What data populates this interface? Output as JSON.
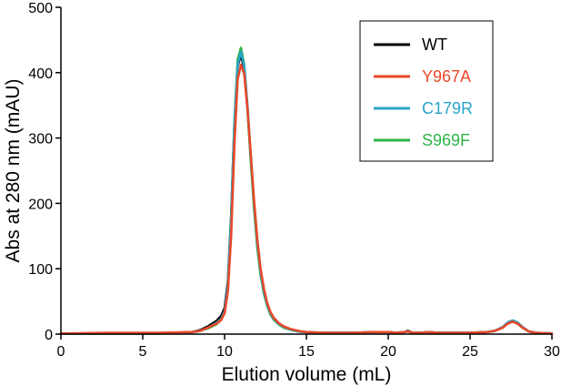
{
  "chart_data": {
    "type": "line",
    "xlabel": "Elution volume (mL)",
    "ylabel": "Abs at 280 nm (mAU)",
    "xlim": [
      0,
      30
    ],
    "ylim": [
      0,
      500
    ],
    "xticks": [
      0,
      5,
      10,
      15,
      20,
      25,
      30
    ],
    "yticks": [
      0,
      100,
      200,
      300,
      400,
      500
    ],
    "grid": false,
    "legend_position": "top-right",
    "series": [
      {
        "name": "WT",
        "color": "#000000",
        "x": [
          0,
          3,
          6,
          8,
          8.5,
          9,
          9.5,
          9.8,
          10,
          10.2,
          10.4,
          10.6,
          10.8,
          11.0,
          11.2,
          11.4,
          11.6,
          11.8,
          12.0,
          12.2,
          12.4,
          12.6,
          12.8,
          13.0,
          13.3,
          13.6,
          14.0,
          14.5,
          15,
          16,
          17,
          18,
          19,
          20,
          20.5,
          21,
          21.2,
          21.5,
          22,
          22.5,
          23,
          24,
          25,
          26,
          26.5,
          27,
          27.3,
          27.6,
          27.9,
          28.2,
          28.6,
          29,
          30
        ],
        "y": [
          1,
          1,
          1,
          3,
          6,
          12,
          20,
          28,
          40,
          80,
          180,
          320,
          410,
          428,
          405,
          345,
          270,
          200,
          140,
          95,
          65,
          45,
          32,
          24,
          16,
          11,
          7,
          4,
          3,
          2,
          2,
          2,
          3,
          3,
          2,
          3,
          5,
          2,
          2,
          3,
          2,
          2,
          2,
          3,
          5,
          10,
          17,
          20,
          17,
          10,
          4,
          2,
          1
        ]
      },
      {
        "name": "Y967A",
        "color": "#e8482a",
        "x": [
          0,
          3,
          6,
          8,
          8.5,
          9,
          9.5,
          9.8,
          10,
          10.2,
          10.4,
          10.6,
          10.8,
          11.0,
          11.2,
          11.4,
          11.6,
          11.8,
          12.0,
          12.2,
          12.4,
          12.6,
          12.8,
          13.0,
          13.3,
          13.6,
          14.0,
          14.5,
          15,
          16,
          17,
          18,
          19,
          20,
          20.5,
          21,
          21.2,
          21.5,
          22,
          22.5,
          23,
          24,
          25,
          26,
          26.5,
          27,
          27.3,
          27.6,
          27.9,
          28.2,
          28.6,
          29,
          30
        ],
        "y": [
          1,
          2,
          2,
          3,
          5,
          10,
          16,
          22,
          32,
          65,
          150,
          290,
          390,
          412,
          398,
          345,
          275,
          205,
          145,
          100,
          70,
          48,
          34,
          25,
          17,
          12,
          8,
          5,
          3,
          2,
          2,
          2,
          3,
          3,
          2,
          3,
          4,
          2,
          2,
          3,
          2,
          2,
          2,
          3,
          5,
          10,
          16,
          19,
          16,
          10,
          4,
          2,
          1
        ]
      },
      {
        "name": "C179R",
        "color": "#2aa4c9",
        "x": [
          0,
          3,
          6,
          8,
          8.5,
          9,
          9.5,
          9.8,
          10,
          10.2,
          10.4,
          10.6,
          10.8,
          11.0,
          11.2,
          11.4,
          11.6,
          11.8,
          12.0,
          12.2,
          12.4,
          12.6,
          12.8,
          13.0,
          13.3,
          13.6,
          14.0,
          14.5,
          15,
          16,
          17,
          18,
          19,
          20,
          20.5,
          21,
          21.2,
          21.5,
          22,
          22.5,
          23,
          24,
          25,
          26,
          26.5,
          27,
          27.3,
          27.6,
          27.9,
          28.2,
          28.6,
          29,
          30
        ],
        "y": [
          1,
          1,
          1,
          3,
          5,
          10,
          17,
          24,
          35,
          75,
          175,
          320,
          412,
          432,
          410,
          350,
          272,
          200,
          140,
          95,
          65,
          45,
          32,
          24,
          16,
          11,
          7,
          4,
          3,
          2,
          2,
          2,
          3,
          3,
          2,
          3,
          4,
          2,
          2,
          3,
          2,
          2,
          2,
          3,
          5,
          11,
          18,
          21,
          18,
          11,
          4,
          2,
          1
        ]
      },
      {
        "name": "S969F",
        "color": "#2db34a",
        "x": [
          0,
          3,
          6,
          8,
          8.5,
          9,
          9.5,
          9.8,
          10,
          10.2,
          10.4,
          10.6,
          10.8,
          11.0,
          11.2,
          11.4,
          11.6,
          11.8,
          12.0,
          12.2,
          12.4,
          12.6,
          12.8,
          13.0,
          13.3,
          13.6,
          14.0,
          14.5,
          15,
          16,
          17,
          18,
          19,
          20,
          20.5,
          21,
          21.2,
          21.5,
          22,
          22.5,
          23,
          24,
          25,
          26,
          26.5,
          27,
          27.3,
          27.6,
          27.9,
          28.2,
          28.6,
          29,
          30
        ],
        "y": [
          1,
          1,
          1,
          3,
          5,
          9,
          15,
          22,
          33,
          72,
          175,
          325,
          420,
          438,
          412,
          345,
          265,
          192,
          132,
          90,
          62,
          43,
          30,
          22,
          15,
          10,
          7,
          4,
          3,
          2,
          2,
          2,
          3,
          3,
          2,
          3,
          4,
          2,
          2,
          3,
          2,
          2,
          2,
          3,
          5,
          10,
          17,
          20,
          17,
          10,
          4,
          2,
          1
        ]
      }
    ]
  }
}
